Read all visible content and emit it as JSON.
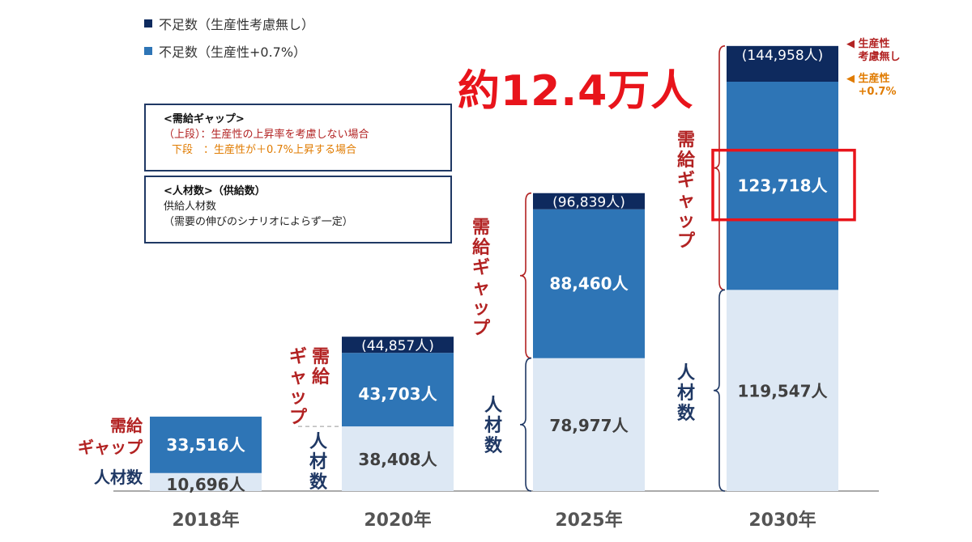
{
  "legend": [
    {
      "label": "不足数（生産性考慮無し）",
      "color": "#0e2a5e"
    },
    {
      "label": "不足数（生産性+0.7%）",
      "color": "#2e75b6"
    }
  ],
  "headline": "約12.4万人",
  "note_box_gap": {
    "title": "<需給ギャップ>",
    "line1": "（上段）：生産性の上昇率を考慮しない場合",
    "line2": "下段　：生産性が＋0.7%上昇する場合"
  },
  "note_box_supply": {
    "title": "<人材数>（供給数）",
    "line1": "供給人材数",
    "line2": "（需要の伸びのシナリオによらず一定）"
  },
  "side_note": {
    "top_label": "生産性\n考慮無し",
    "bottom_label": "生産性\n+0.7%"
  },
  "gap_label": "需給ギャップ",
  "supply_label": "人材数",
  "colors": {
    "gap_no_productivity": "#0e2a5e",
    "gap_productivity": "#2e75b6",
    "supply": "#dde8f4",
    "label_red": "#b22222",
    "label_navy": "#1f3864",
    "highlight": "#e8141b"
  },
  "chart_data": {
    "type": "bar",
    "categories": [
      "2018年",
      "2020年",
      "2025年",
      "2030年"
    ],
    "series": [
      {
        "name": "人材数",
        "values": [
          10696,
          38408,
          78977,
          119547
        ],
        "labels": [
          "10,696人",
          "38,408人",
          "78,977人",
          "119,547人"
        ]
      },
      {
        "name": "不足数（生産性+0.7%）",
        "values": [
          33516,
          43703,
          88460,
          123718
        ],
        "labels": [
          "33,516人",
          "43,703人",
          "88,460人",
          "123,718人"
        ]
      },
      {
        "name": "不足数（生産性考慮無し）",
        "values": [
          null,
          44857,
          96839,
          144958
        ],
        "labels": [
          "",
          "(44,857人)",
          "(96,839人)",
          "(144,958人)"
        ]
      }
    ]
  }
}
